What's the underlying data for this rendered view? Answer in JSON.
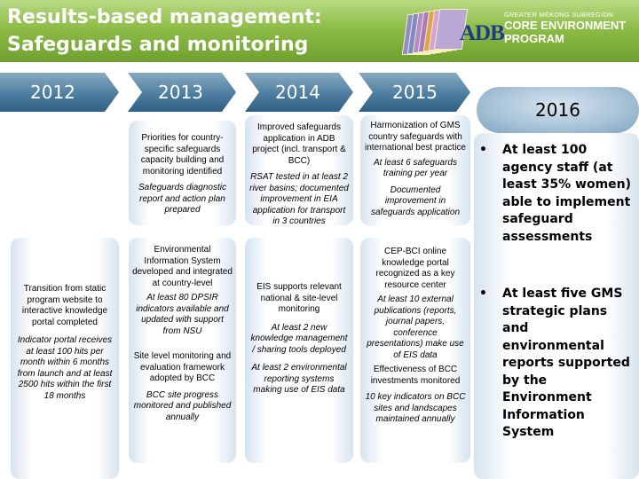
{
  "header": {
    "title_line1": "Results-based management:",
    "title_line2": "Safeguards and monitoring",
    "logo_text": "ADB",
    "program_line1": "GREATER MEKONG SUBREGION",
    "program_line2": "CORE ENVIRONMENT",
    "program_line3": "PROGRAM",
    "colors": {
      "header_green": "#8dbd47",
      "adb_blue": "#1f3a8a",
      "year_blue": "#4d7d9f"
    }
  },
  "years": {
    "y2012": "2012",
    "y2013": "2013",
    "y2014": "2014",
    "y2015": "2015",
    "y2016": "2016"
  },
  "col2012": {
    "lines": [
      "Transition from static program website to interactive knowledge portal completed"
    ],
    "italic": [
      "Indicator portal receives at least 100 hits per month within 6 months from launch and at least 2500 hits within the first 18 months"
    ]
  },
  "col2013": {
    "top": {
      "p1": "Priorities for country-specific safeguards capacity building and monitoring identified",
      "p2": "Safeguards diagnostic report and action plan prepared"
    },
    "bottom": {
      "p1": "Environmental Information System developed and integrated at country-level",
      "p2": "At least 80 DPSIR indicators available and updated with support from NSU",
      "p3": "Site level monitoring and evaluation framework adopted by BCC",
      "p4": "BCC site progress monitored and published annually"
    }
  },
  "col2014": {
    "top": {
      "p1": "Improved safeguards application in ADB project (incl. transport & BCC)",
      "p2": "RSAT tested in at least 2 river basins; documented improvement in EIA application for transport in 3 countries"
    },
    "bottom": {
      "p1": "EIS supports relevant national & site-level monitoring",
      "p2": "At least  2 new knowledge management / sharing tools deployed",
      "p3": "At least 2 environmental reporting systems making use of EIS data"
    }
  },
  "col2015": {
    "top": {
      "p1": "Harmonization of GMS country safeguards with international best practice",
      "p2": "At least 6 safeguards training per year",
      "p3": "Documented improvement in safeguards application"
    },
    "bottom": {
      "p1": "CEP-BCI online knowledge portal recognized as a key resource center",
      "p2": "At least 10 external publications (reports, journal papers, conference presentations) make use of EIS data",
      "p3": "Effectiveness of BCC investments monitored",
      "p4": "10 key indicators on BCC sites and landscapes maintained annually"
    }
  },
  "col2016": {
    "b1": "At least 100 agency staff  (at least 35% women) able to implement safeguard assessments",
    "b2": "At least five GMS strategic plans and environmental reports supported by the Environment Information System",
    "bullet": "•"
  }
}
